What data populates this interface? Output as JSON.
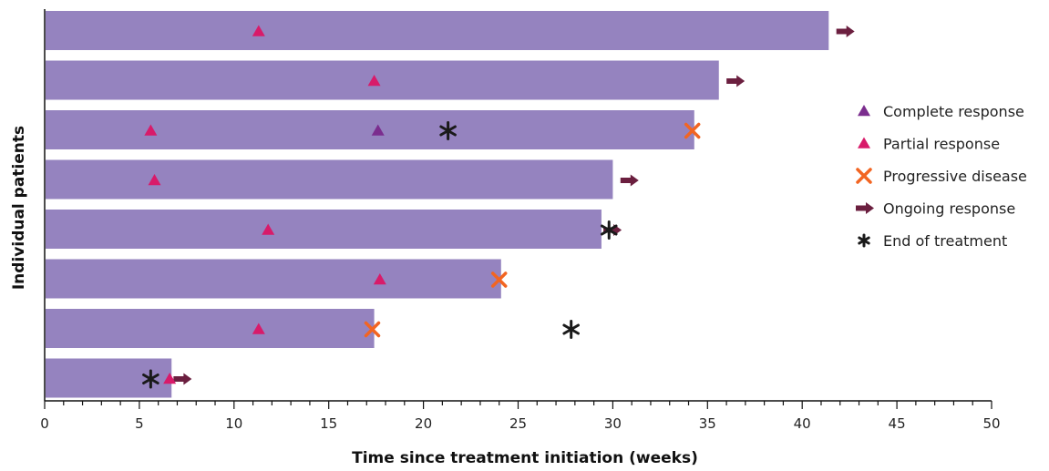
{
  "chart_data": {
    "type": "bar",
    "orientation": "horizontal",
    "xlabel": "Time since treatment initiation (weeks)",
    "ylabel": "Individual patients",
    "xlim": [
      0,
      50
    ],
    "xticks": [
      0,
      5,
      10,
      15,
      20,
      25,
      30,
      35,
      40,
      45,
      50
    ],
    "grid": false,
    "legend_position": "right",
    "colors": {
      "bar": "#9583BF",
      "complete_response": "#7B2D8E",
      "partial_response": "#D81B6A",
      "progressive_disease": "#F26522",
      "ongoing_response": "#6B1F3F",
      "end_of_treatment": "#1A1A1A"
    },
    "legend": [
      {
        "key": "complete_response",
        "label": "Complete response"
      },
      {
        "key": "partial_response",
        "label": "Partial response"
      },
      {
        "key": "progressive_disease",
        "label": "Progressive disease"
      },
      {
        "key": "ongoing_response",
        "label": "Ongoing response"
      },
      {
        "key": "end_of_treatment",
        "label": "End of treatment"
      }
    ],
    "patients": [
      {
        "duration": 41.4,
        "complete_response": [],
        "partial_response": [
          11.3
        ],
        "progressive_disease": [],
        "ongoing_response": [
          41.9
        ],
        "end_of_treatment": []
      },
      {
        "duration": 35.6,
        "complete_response": [],
        "partial_response": [
          17.4
        ],
        "progressive_disease": [],
        "ongoing_response": [
          36.1
        ],
        "end_of_treatment": []
      },
      {
        "duration": 34.3,
        "complete_response": [
          17.6
        ],
        "partial_response": [
          5.6
        ],
        "progressive_disease": [
          34.2
        ],
        "ongoing_response": [],
        "end_of_treatment": [
          21.3
        ]
      },
      {
        "duration": 30.0,
        "complete_response": [],
        "partial_response": [
          5.8
        ],
        "progressive_disease": [],
        "ongoing_response": [
          30.5
        ],
        "end_of_treatment": []
      },
      {
        "duration": 29.4,
        "complete_response": [],
        "partial_response": [
          11.8
        ],
        "progressive_disease": [],
        "ongoing_response": [
          29.6
        ],
        "end_of_treatment": [
          29.8
        ]
      },
      {
        "duration": 24.1,
        "complete_response": [],
        "partial_response": [
          17.7
        ],
        "progressive_disease": [
          24.0
        ],
        "ongoing_response": [],
        "end_of_treatment": []
      },
      {
        "duration": 17.4,
        "complete_response": [],
        "partial_response": [
          11.3
        ],
        "progressive_disease": [
          17.3
        ],
        "ongoing_response": [],
        "end_of_treatment": [
          27.8
        ]
      },
      {
        "duration": 6.7,
        "complete_response": [],
        "partial_response": [
          6.6
        ],
        "progressive_disease": [],
        "ongoing_response": [
          6.9
        ],
        "end_of_treatment": [
          5.6
        ]
      }
    ]
  }
}
